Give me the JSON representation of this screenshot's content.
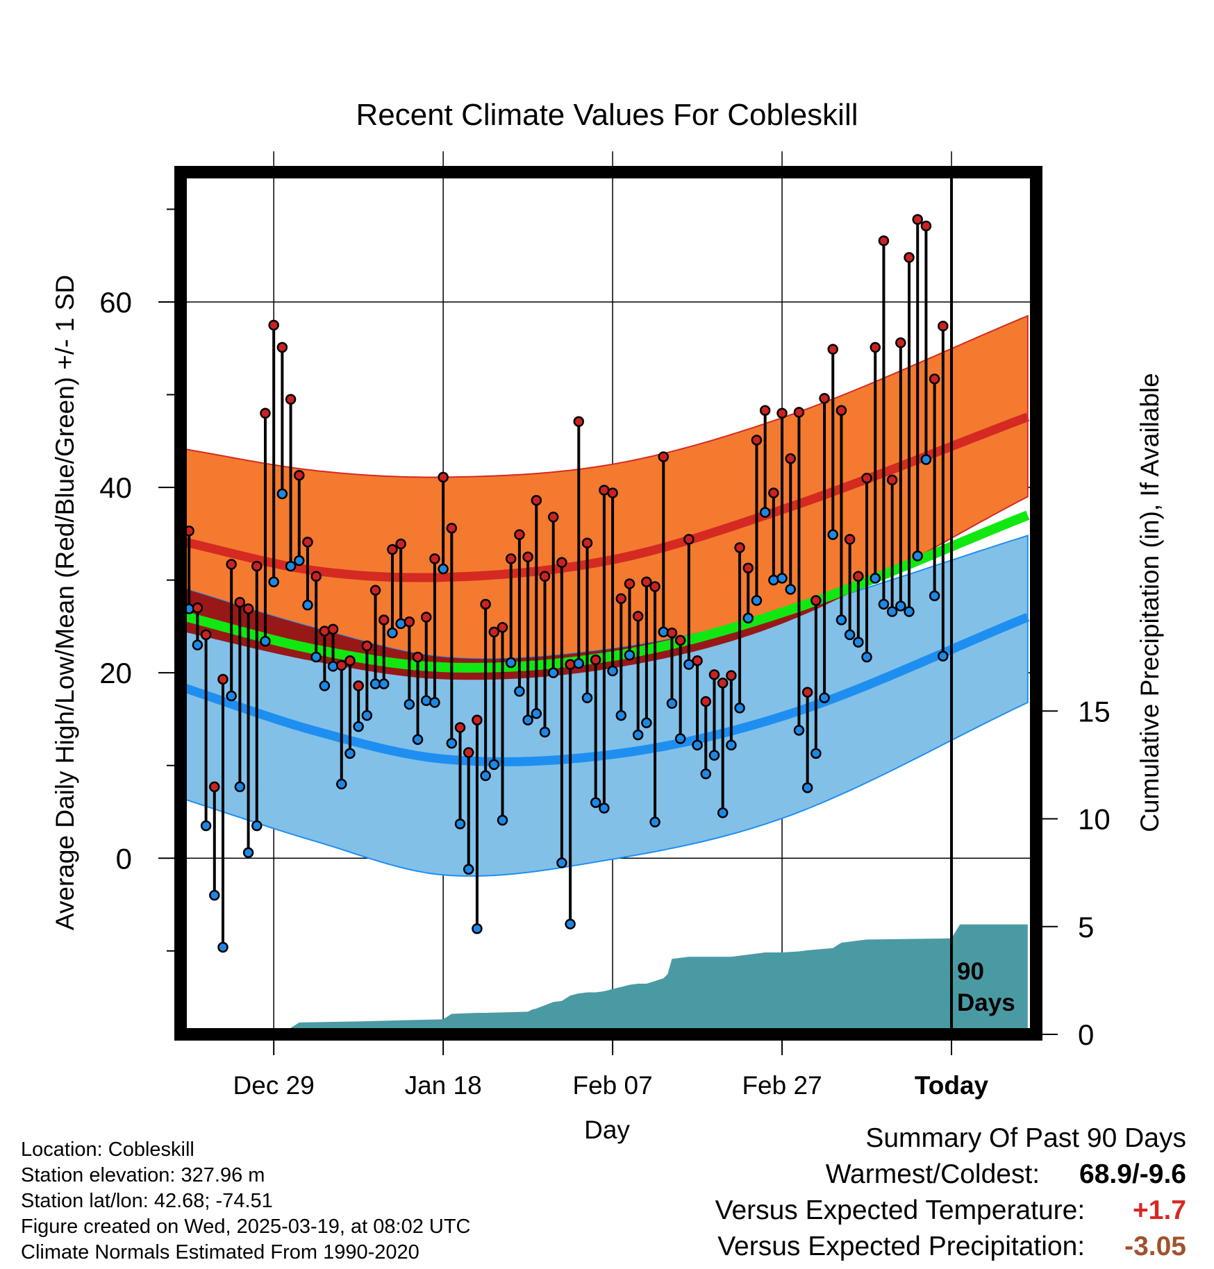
{
  "chart_data": {
    "type": "line",
    "title": "Recent Climate Values For Cobleskill",
    "xlabel": "Day",
    "ylabel": "Average Daily High/Low/Mean (Red/Blue/Green) +/- 1 SD",
    "y2label": "Cumulative Precipitation (in), If Available",
    "ylim": [
      -19,
      74
    ],
    "y2lim": [
      0,
      40
    ],
    "xlim": [
      -11,
      90
    ],
    "x_ticks": [
      {
        "day": 0,
        "label": "Dec 29"
      },
      {
        "day": 20,
        "label": "Jan 18"
      },
      {
        "day": 40,
        "label": "Feb 07"
      },
      {
        "day": 60,
        "label": "Feb 27"
      },
      {
        "day": 80,
        "label": "Today"
      }
    ],
    "y_ticks": [
      "0",
      "20",
      "40",
      "60"
    ],
    "y2_ticks": [
      "0",
      "5",
      "10",
      "15"
    ],
    "today_marker": {
      "day": 80,
      "label_line1": "90",
      "label_line2": "Days"
    },
    "grid": true,
    "colors": {
      "high_band": "#f47a30",
      "high_mean": "#d42a22",
      "low_band": "#82c0e8",
      "low_mean": "#1e8ff0",
      "daily_mean": "#11e811",
      "overlap": "#981818",
      "precip": "#4a9aa4",
      "obs_high": "#cc2222",
      "obs_low": "#1e88e6",
      "positive": "#d42a22",
      "negative": "#a0522d"
    },
    "normal_high": {
      "mean": [
        34.2,
        31.0,
        30.3,
        32.2,
        37.6,
        47.6
      ],
      "upper": [
        44.2,
        41.8,
        41.1,
        42.5,
        47.5,
        58.5
      ],
      "lower": [
        24.5,
        21.2,
        19.3,
        20.5,
        25.3,
        39.0
      ]
    },
    "normal_low": {
      "mean": [
        18.5,
        13.7,
        10.7,
        11.2,
        15.3,
        26.0
      ],
      "upper": [
        29.2,
        24.8,
        21.7,
        22.6,
        26.5,
        34.8
      ],
      "lower": [
        6.5,
        1.8,
        -1.8,
        -0.1,
        4.3,
        16.8
      ]
    },
    "normal_mean": {
      "mean": [
        26.2,
        22.5,
        20.6,
        21.8,
        26.5,
        37.0
      ]
    },
    "normal_x": [
      -11,
      5,
      20,
      40,
      60,
      89
    ],
    "daily": {
      "start_day": -10,
      "high": [
        35.3,
        27.0,
        24.1,
        7.7,
        19.3,
        31.7,
        27.6,
        26.9,
        31.5,
        48.0,
        57.5,
        55.1,
        49.5,
        41.3,
        34.1,
        30.4,
        24.5,
        24.7,
        20.8,
        21.3,
        18.6,
        22.9,
        28.9,
        25.7,
        33.3,
        33.9,
        25.5,
        21.7,
        26.0,
        32.3,
        41.1,
        35.6,
        14.1,
        11.4,
        14.9,
        27.4,
        24.4,
        24.9,
        32.3,
        34.9,
        32.5,
        38.6,
        30.4,
        36.8,
        31.9,
        20.9,
        47.1,
        34.0,
        21.4,
        39.7,
        39.4,
        28.0,
        29.6,
        26.1,
        29.8,
        29.3,
        43.3,
        24.3,
        23.5,
        34.4,
        21.3,
        16.9,
        19.8,
        18.9,
        19.7,
        33.5,
        31.3,
        45.1,
        48.3,
        39.4,
        48.0,
        43.1,
        48.1,
        17.9,
        27.8,
        49.6,
        54.9,
        48.3,
        34.4,
        30.4,
        41.0,
        55.1,
        66.6,
        40.8,
        55.6,
        64.8,
        68.9,
        68.2,
        51.7,
        57.4
      ],
      "low": [
        26.9,
        23.0,
        3.5,
        -4.0,
        -9.6,
        17.5,
        7.7,
        0.6,
        3.5,
        23.4,
        29.8,
        39.3,
        31.5,
        32.1,
        27.3,
        21.7,
        18.6,
        20.7,
        8.0,
        11.3,
        14.2,
        15.4,
        18.8,
        18.8,
        24.3,
        25.3,
        16.6,
        12.8,
        17.0,
        16.8,
        31.2,
        12.4,
        3.7,
        -1.2,
        -7.6,
        8.9,
        10.1,
        4.1,
        21.1,
        18.0,
        14.9,
        15.6,
        13.6,
        20.0,
        -0.5,
        -7.1,
        21.0,
        17.3,
        6.0,
        5.4,
        20.2,
        15.4,
        21.9,
        13.3,
        14.6,
        3.9,
        24.4,
        16.7,
        12.9,
        20.9,
        12.2,
        9.1,
        11.1,
        4.9,
        12.2,
        16.2,
        25.9,
        27.8,
        37.3,
        30.0,
        30.2,
        29.0,
        13.8,
        7.6,
        11.3,
        17.3,
        34.9,
        25.7,
        24.1,
        23.3,
        21.7,
        30.2,
        27.4,
        26.6,
        27.2,
        26.6,
        32.6,
        43.0,
        28.3,
        21.8
      ]
    },
    "precip": {
      "x": [
        -11,
        0,
        2,
        3,
        10,
        15,
        20,
        21,
        24,
        25,
        30,
        30.5,
        31,
        32,
        33,
        34,
        35,
        36,
        37,
        38,
        39,
        40,
        41,
        42,
        43,
        44,
        46,
        46.5,
        47,
        48,
        49,
        50,
        54,
        56,
        58,
        60,
        62,
        63,
        66,
        67,
        69,
        70,
        80,
        81,
        89
      ],
      "cum": [
        0,
        0,
        0.3,
        0.55,
        0.6,
        0.65,
        0.7,
        0.95,
        1.0,
        1.0,
        1.05,
        1.15,
        1.2,
        1.35,
        1.5,
        1.55,
        1.8,
        1.9,
        1.95,
        1.95,
        2.0,
        2.1,
        2.2,
        2.3,
        2.35,
        2.35,
        2.6,
        2.8,
        3.5,
        3.55,
        3.6,
        3.6,
        3.6,
        3.7,
        3.8,
        3.8,
        3.85,
        3.9,
        4.0,
        4.25,
        4.35,
        4.4,
        4.45,
        5.1,
        5.1
      ]
    }
  },
  "info": {
    "location": "Location: Cobleskill",
    "elevation": "Station elevation: 327.96 m",
    "latlon": "Station lat/lon: 42.68; -74.51",
    "created": "Figure created on Wed, 2025-03-19, at 08:02 UTC",
    "normals": "Climate Normals Estimated From 1990-2020"
  },
  "summary": {
    "heading": "Summary Of Past 90 Days",
    "warmest_coldest_label": "Warmest/Coldest:",
    "warmest_coldest_value": "68.9/-9.6",
    "temp_label": "Versus Expected Temperature:",
    "temp_value": "+1.7",
    "precip_label": "Versus Expected Precipitation:",
    "precip_value": "-3.05"
  }
}
